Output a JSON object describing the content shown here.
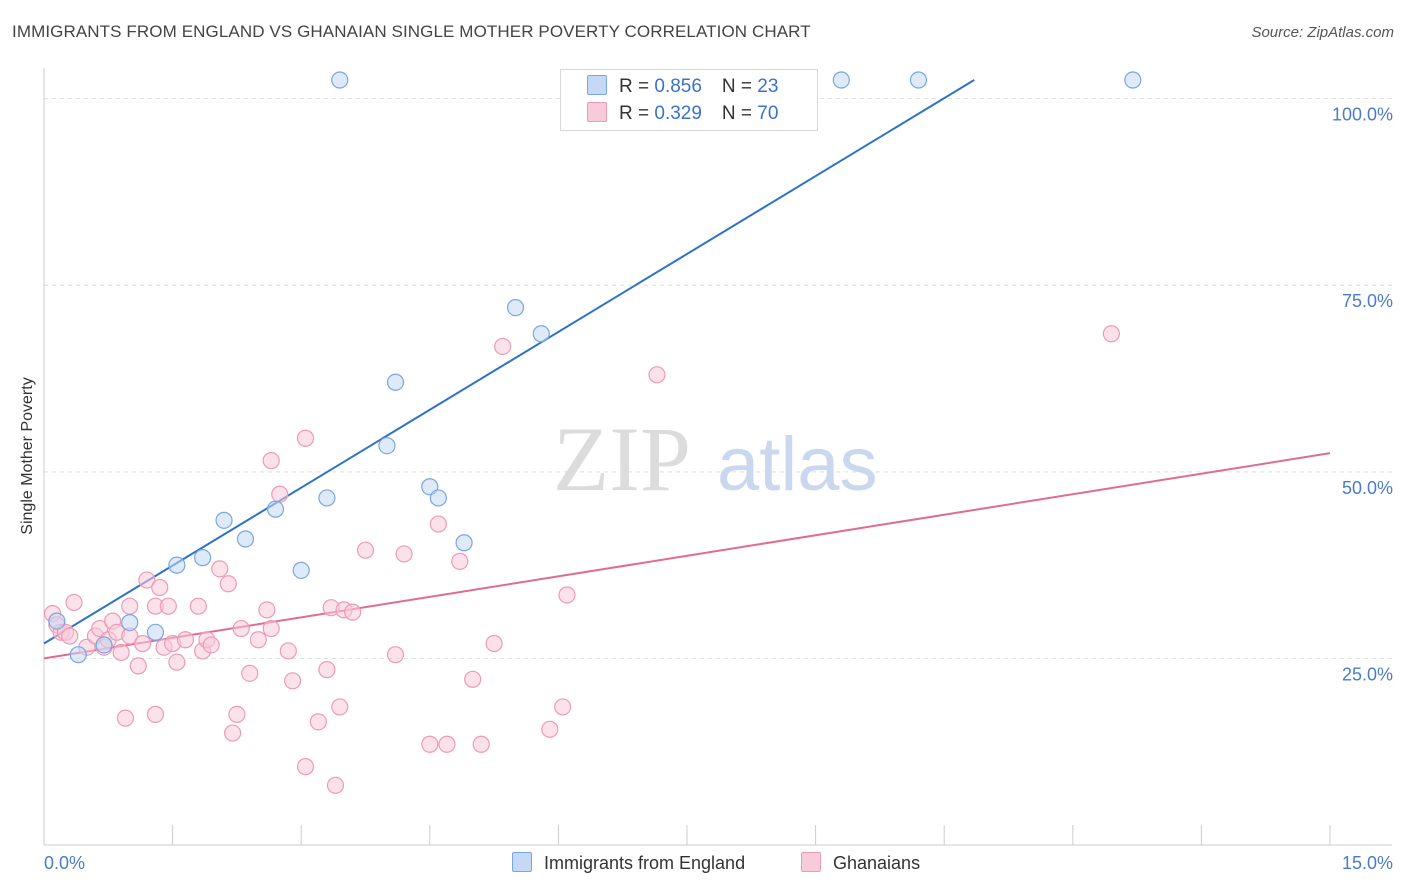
{
  "title": "IMMIGRANTS FROM ENGLAND VS GHANAIAN SINGLE MOTHER POVERTY CORRELATION CHART",
  "source": "Source: ZipAtlas.com",
  "watermark": {
    "zip": "ZIP",
    "atlas": "atlas"
  },
  "legend": {
    "blue": {
      "r_label": "R = ",
      "r_value": "0.856",
      "n_label": "N = ",
      "n_value": "23"
    },
    "pink": {
      "r_label": "R = ",
      "r_value": "0.329",
      "n_label": "N = ",
      "n_value": "70"
    }
  },
  "chart_data": {
    "type": "scatter",
    "xlabel": "",
    "ylabel": "Single Mother Poverty",
    "xlim": [
      0,
      15
    ],
    "ylim": [
      0,
      102.5
    ],
    "x_tick_labels": [
      {
        "value": 0,
        "label": "0.0%"
      },
      {
        "value": 15,
        "label": "15.0%"
      }
    ],
    "y_tick_labels": [
      {
        "value": 25,
        "label": "25.0%"
      },
      {
        "value": 50,
        "label": "50.0%"
      },
      {
        "value": 75,
        "label": "75.0%"
      },
      {
        "value": 100,
        "label": "100.0%"
      }
    ],
    "grid": true,
    "series": [
      {
        "name": "Immigrants from England",
        "color": "#7aa6e0",
        "fill": "#c5d9f4",
        "line_color": "#2f72c8",
        "trend": [
          [
            0,
            27.0
          ],
          [
            10.85,
            102.5
          ]
        ],
        "points": [
          [
            0.15,
            30.0
          ],
          [
            0.4,
            25.5
          ],
          [
            0.7,
            26.8
          ],
          [
            1.0,
            29.8
          ],
          [
            1.3,
            28.5
          ],
          [
            1.55,
            37.5
          ],
          [
            1.85,
            38.5
          ],
          [
            2.1,
            43.5
          ],
          [
            2.35,
            41.0
          ],
          [
            2.7,
            45.0
          ],
          [
            3.0,
            36.8
          ],
          [
            3.3,
            46.5
          ],
          [
            4.0,
            53.5
          ],
          [
            4.1,
            62.0
          ],
          [
            4.5,
            48.0
          ],
          [
            4.6,
            46.5
          ],
          [
            4.9,
            40.5
          ],
          [
            5.5,
            72.0
          ],
          [
            5.8,
            68.5
          ],
          [
            3.45,
            102.5
          ],
          [
            9.3,
            102.5
          ],
          [
            10.2,
            102.5
          ],
          [
            12.7,
            102.5
          ]
        ]
      },
      {
        "name": "Ghanaians",
        "color": "#ee9ab5",
        "fill": "#f7cbd9",
        "line_color": "#e06b95",
        "trend": [
          [
            0,
            25.0
          ],
          [
            15,
            52.5
          ]
        ],
        "points": [
          [
            0.1,
            31.0
          ],
          [
            0.15,
            29.5
          ],
          [
            0.2,
            28.5
          ],
          [
            0.25,
            28.5
          ],
          [
            0.3,
            28.0
          ],
          [
            0.35,
            32.5
          ],
          [
            0.5,
            26.5
          ],
          [
            0.6,
            28.0
          ],
          [
            0.65,
            29.0
          ],
          [
            0.7,
            26.5
          ],
          [
            0.75,
            27.5
          ],
          [
            0.8,
            30.0
          ],
          [
            0.85,
            28.5
          ],
          [
            0.9,
            25.8
          ],
          [
            1.0,
            28.0
          ],
          [
            1.0,
            32.0
          ],
          [
            1.1,
            24.0
          ],
          [
            1.15,
            27.0
          ],
          [
            1.2,
            35.5
          ],
          [
            1.3,
            32.0
          ],
          [
            1.35,
            34.5
          ],
          [
            1.4,
            26.5
          ],
          [
            1.5,
            27.0
          ],
          [
            1.55,
            24.5
          ],
          [
            1.65,
            27.5
          ],
          [
            1.8,
            32.0
          ],
          [
            1.85,
            26.0
          ],
          [
            1.9,
            27.5
          ],
          [
            1.95,
            26.8
          ],
          [
            2.05,
            37.0
          ],
          [
            2.15,
            35.0
          ],
          [
            2.3,
            29.0
          ],
          [
            2.4,
            23.0
          ],
          [
            2.5,
            27.5
          ],
          [
            2.6,
            31.5
          ],
          [
            2.65,
            29.0
          ],
          [
            2.65,
            51.5
          ],
          [
            2.75,
            47.0
          ],
          [
            2.85,
            26.0
          ],
          [
            2.9,
            22.0
          ],
          [
            3.05,
            54.5
          ],
          [
            3.2,
            16.5
          ],
          [
            3.3,
            23.5
          ],
          [
            3.35,
            31.8
          ],
          [
            3.45,
            18.5
          ],
          [
            3.5,
            31.5
          ],
          [
            3.6,
            31.2
          ],
          [
            3.75,
            39.5
          ],
          [
            4.1,
            25.5
          ],
          [
            4.2,
            39.0
          ],
          [
            4.5,
            13.5
          ],
          [
            4.6,
            43.0
          ],
          [
            4.7,
            13.5
          ],
          [
            4.85,
            38.0
          ],
          [
            5.0,
            22.2
          ],
          [
            5.25,
            27.0
          ],
          [
            5.35,
            66.8
          ],
          [
            5.9,
            15.5
          ],
          [
            6.05,
            18.5
          ],
          [
            6.1,
            33.5
          ],
          [
            7.15,
            63.0
          ],
          [
            12.45,
            68.5
          ],
          [
            1.3,
            17.5
          ],
          [
            2.2,
            15.0
          ],
          [
            2.25,
            17.5
          ],
          [
            3.05,
            10.5
          ],
          [
            3.4,
            8.0
          ],
          [
            1.45,
            32.0
          ],
          [
            0.95,
            17.0
          ],
          [
            5.1,
            13.5
          ]
        ]
      }
    ]
  }
}
